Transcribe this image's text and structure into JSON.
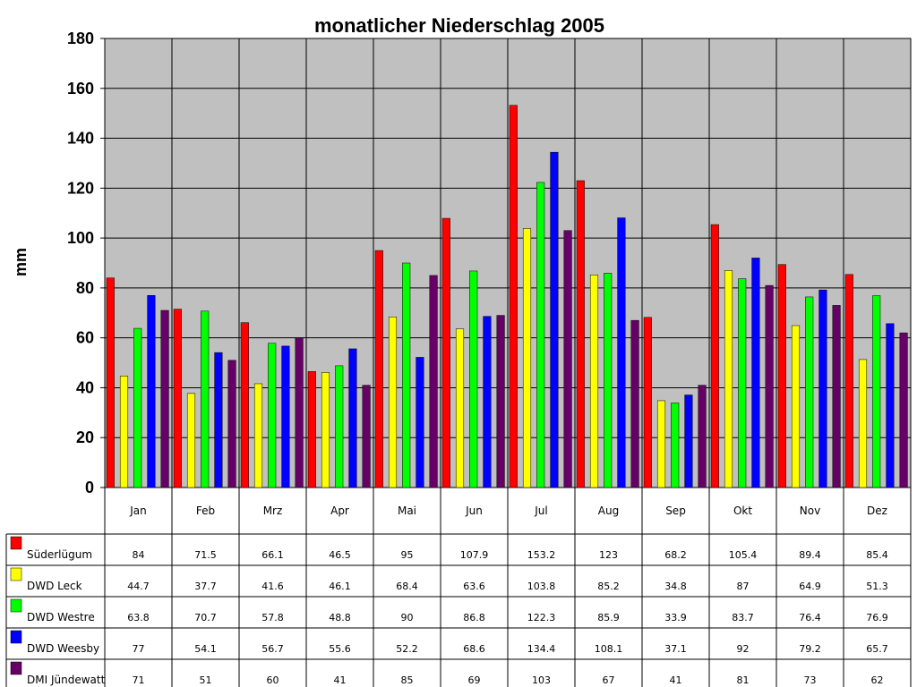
{
  "chart_data": {
    "type": "bar",
    "title": "monatlicher Niederschlag 2005",
    "ylabel": "mm",
    "ylim": [
      0,
      180
    ],
    "yticks": [
      0,
      20,
      40,
      60,
      80,
      100,
      120,
      140,
      160,
      180
    ],
    "grid": true,
    "legend": "data-table-below",
    "categories": [
      "Jan",
      "Feb",
      "Mrz",
      "Apr",
      "Mai",
      "Jun",
      "Jul",
      "Aug",
      "Sep",
      "Okt",
      "Nov",
      "Dez"
    ],
    "series": [
      {
        "name": "Süderlügum",
        "color": "#ff0000",
        "values": [
          84,
          71.5,
          66.1,
          46.5,
          95,
          107.9,
          153.2,
          123,
          68.2,
          105.4,
          89.4,
          85.4
        ]
      },
      {
        "name": "DWD Leck",
        "color": "#ffff00",
        "values": [
          44.7,
          37.7,
          41.6,
          46.1,
          68.4,
          63.6,
          103.8,
          85.2,
          34.8,
          87,
          64.9,
          51.3
        ]
      },
      {
        "name": "DWD Westre",
        "color": "#00ff00",
        "values": [
          63.8,
          70.7,
          57.8,
          48.8,
          90,
          86.8,
          122.3,
          85.9,
          33.9,
          83.7,
          76.4,
          76.9
        ]
      },
      {
        "name": "DWD Weesby",
        "color": "#0000ff",
        "values": [
          77,
          54.1,
          56.7,
          55.6,
          52.2,
          68.6,
          134.4,
          108.1,
          37.1,
          92,
          79.2,
          65.7
        ]
      },
      {
        "name": "DMI Jündewatt",
        "color": "#660066",
        "values": [
          71,
          51,
          60,
          41,
          85,
          69,
          103,
          67,
          41,
          81,
          73,
          62
        ]
      }
    ],
    "plot_background": "#c0c0c0"
  }
}
